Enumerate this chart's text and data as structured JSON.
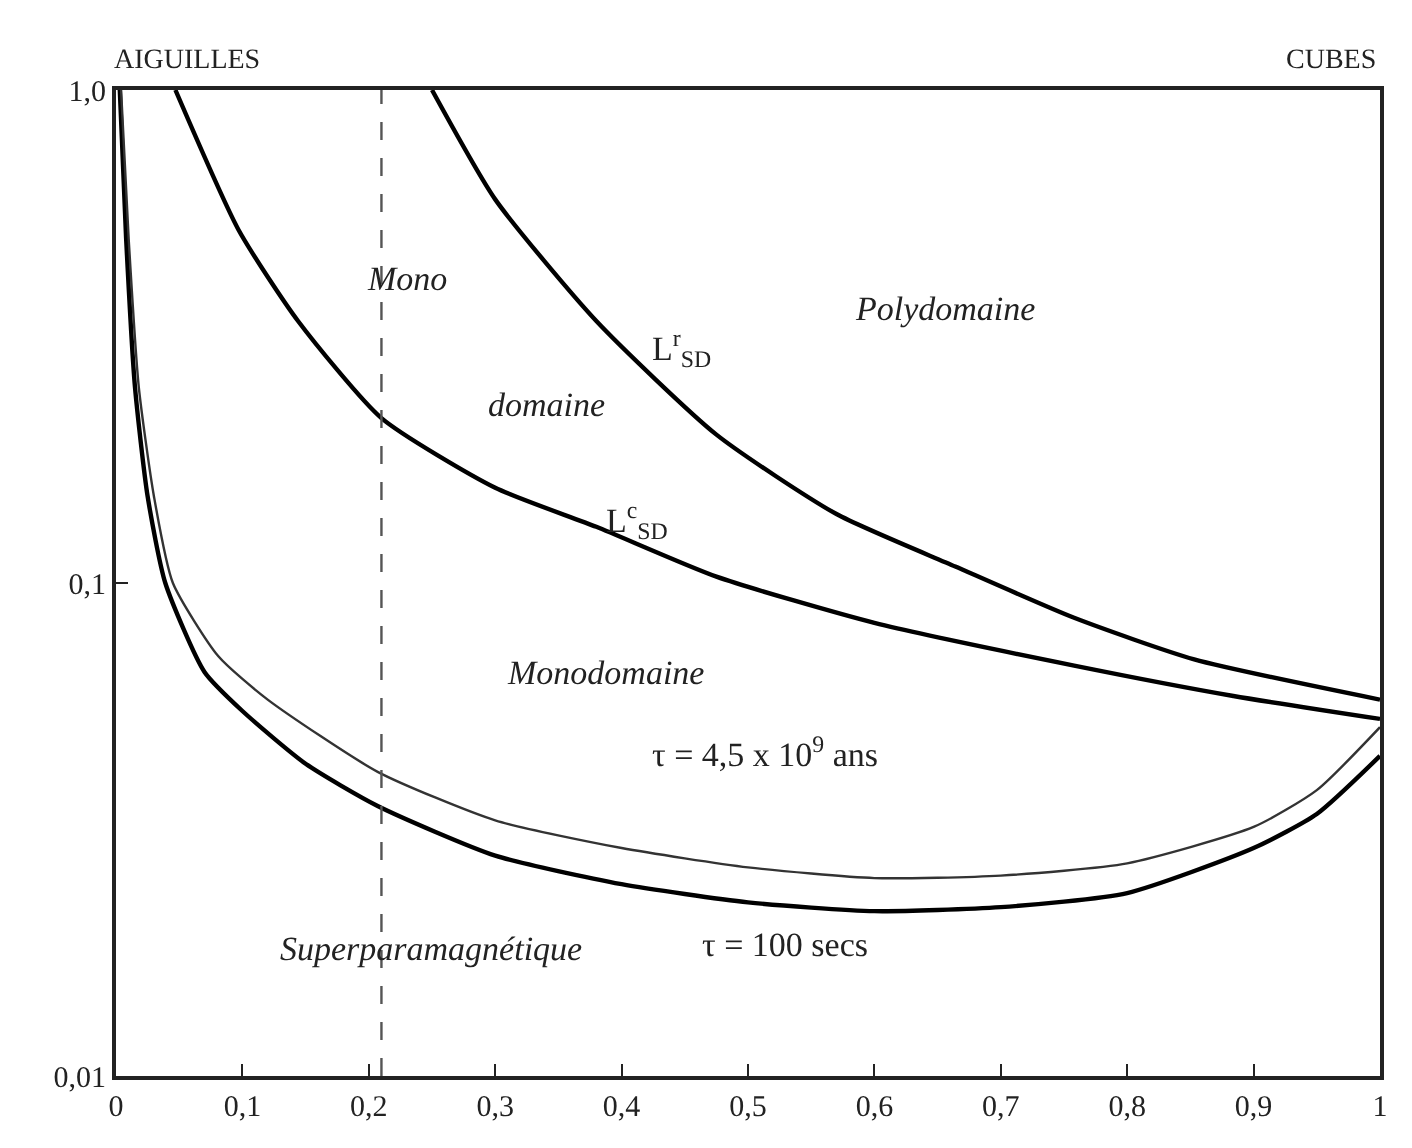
{
  "chart_data": {
    "type": "line",
    "log": "y",
    "marker": "none",
    "line_style": "solid",
    "xlim": [
      0,
      1
    ],
    "ylim": [
      0.01,
      1
    ],
    "xticks": [
      0,
      {
        "value": 0.1,
        "label": "0,1"
      },
      {
        "value": 0.2,
        "label": "0,2"
      },
      {
        "value": 0.3,
        "label": "0,3"
      },
      {
        "value": 0.4,
        "label": "0,4"
      },
      {
        "value": 0.5,
        "label": "0,5"
      },
      {
        "value": 0.6,
        "label": "0,6"
      },
      {
        "value": 0.7,
        "label": "0,7"
      },
      {
        "value": 0.8,
        "label": "0,8"
      },
      {
        "value": 0.9,
        "label": "0,9"
      },
      1
    ],
    "yticks": [
      {
        "value": 0.01,
        "label": "0,01"
      },
      {
        "value": 0.1,
        "label": "0,1"
      },
      {
        "value": 1,
        "label": "1,0"
      }
    ],
    "series": [
      {
        "color": "#000000",
        "x": [
          0.25,
          0.3,
          0.38,
          0.475,
          0.57,
          0.664,
          0.758,
          0.853,
          1.0
        ],
        "values": [
          1.0,
          0.6,
          0.34,
          0.2,
          0.138,
          0.108,
          0.085,
          0.07,
          0.058
        ]
      },
      {
        "color": "#000000",
        "x": [
          0.047,
          0.097,
          0.144,
          0.21,
          0.3,
          0.38,
          0.475,
          0.6,
          0.758,
          0.884,
          1.0
        ],
        "values": [
          1.0,
          0.52,
          0.34,
          0.216,
          0.156,
          0.13,
          0.103,
          0.083,
          0.068,
          0.059,
          0.053
        ]
      },
      {
        "color": "#000000",
        "x": [
          0.003,
          0.008,
          0.015,
          0.025,
          0.039,
          0.07,
          0.1,
          0.15,
          0.207,
          0.3,
          0.4,
          0.5,
          0.6,
          0.7,
          0.8,
          0.9,
          0.95,
          1.0
        ],
        "values": [
          1.0,
          0.5,
          0.25,
          0.15,
          0.1,
          0.066,
          0.055,
          0.043,
          0.0353,
          0.028,
          0.0245,
          0.0225,
          0.0216,
          0.022,
          0.0235,
          0.029,
          0.034,
          0.0446
        ]
      },
      {
        "color": "#333333",
        "x": [
          0.004,
          0.01,
          0.018,
          0.03,
          0.045,
          0.081,
          0.12,
          0.207,
          0.3,
          0.4,
          0.5,
          0.6,
          0.7,
          0.8,
          0.9,
          0.95,
          1.0
        ],
        "values": [
          1.0,
          0.5,
          0.25,
          0.15,
          0.1,
          0.071,
          0.058,
          0.0414,
          0.033,
          0.029,
          0.0265,
          0.0252,
          0.0255,
          0.027,
          0.032,
          0.038,
          0.051
        ]
      }
    ],
    "ref_lines": [
      {
        "axis": "x",
        "value": 0.21,
        "line_style": "dashed",
        "color": "#555555"
      }
    ],
    "annotations": [
      "AIGUILLES",
      "CUBES",
      "Mono",
      "domaine",
      "L$^{r}$$_{SD}$",
      "L$^{c}$$_{SD}$",
      "Polydomaine",
      "Monodomaine",
      "τ = 4,5 x 10$^{9}$ ans",
      "τ = 100 secs",
      "Superparamagnétique"
    ]
  }
}
